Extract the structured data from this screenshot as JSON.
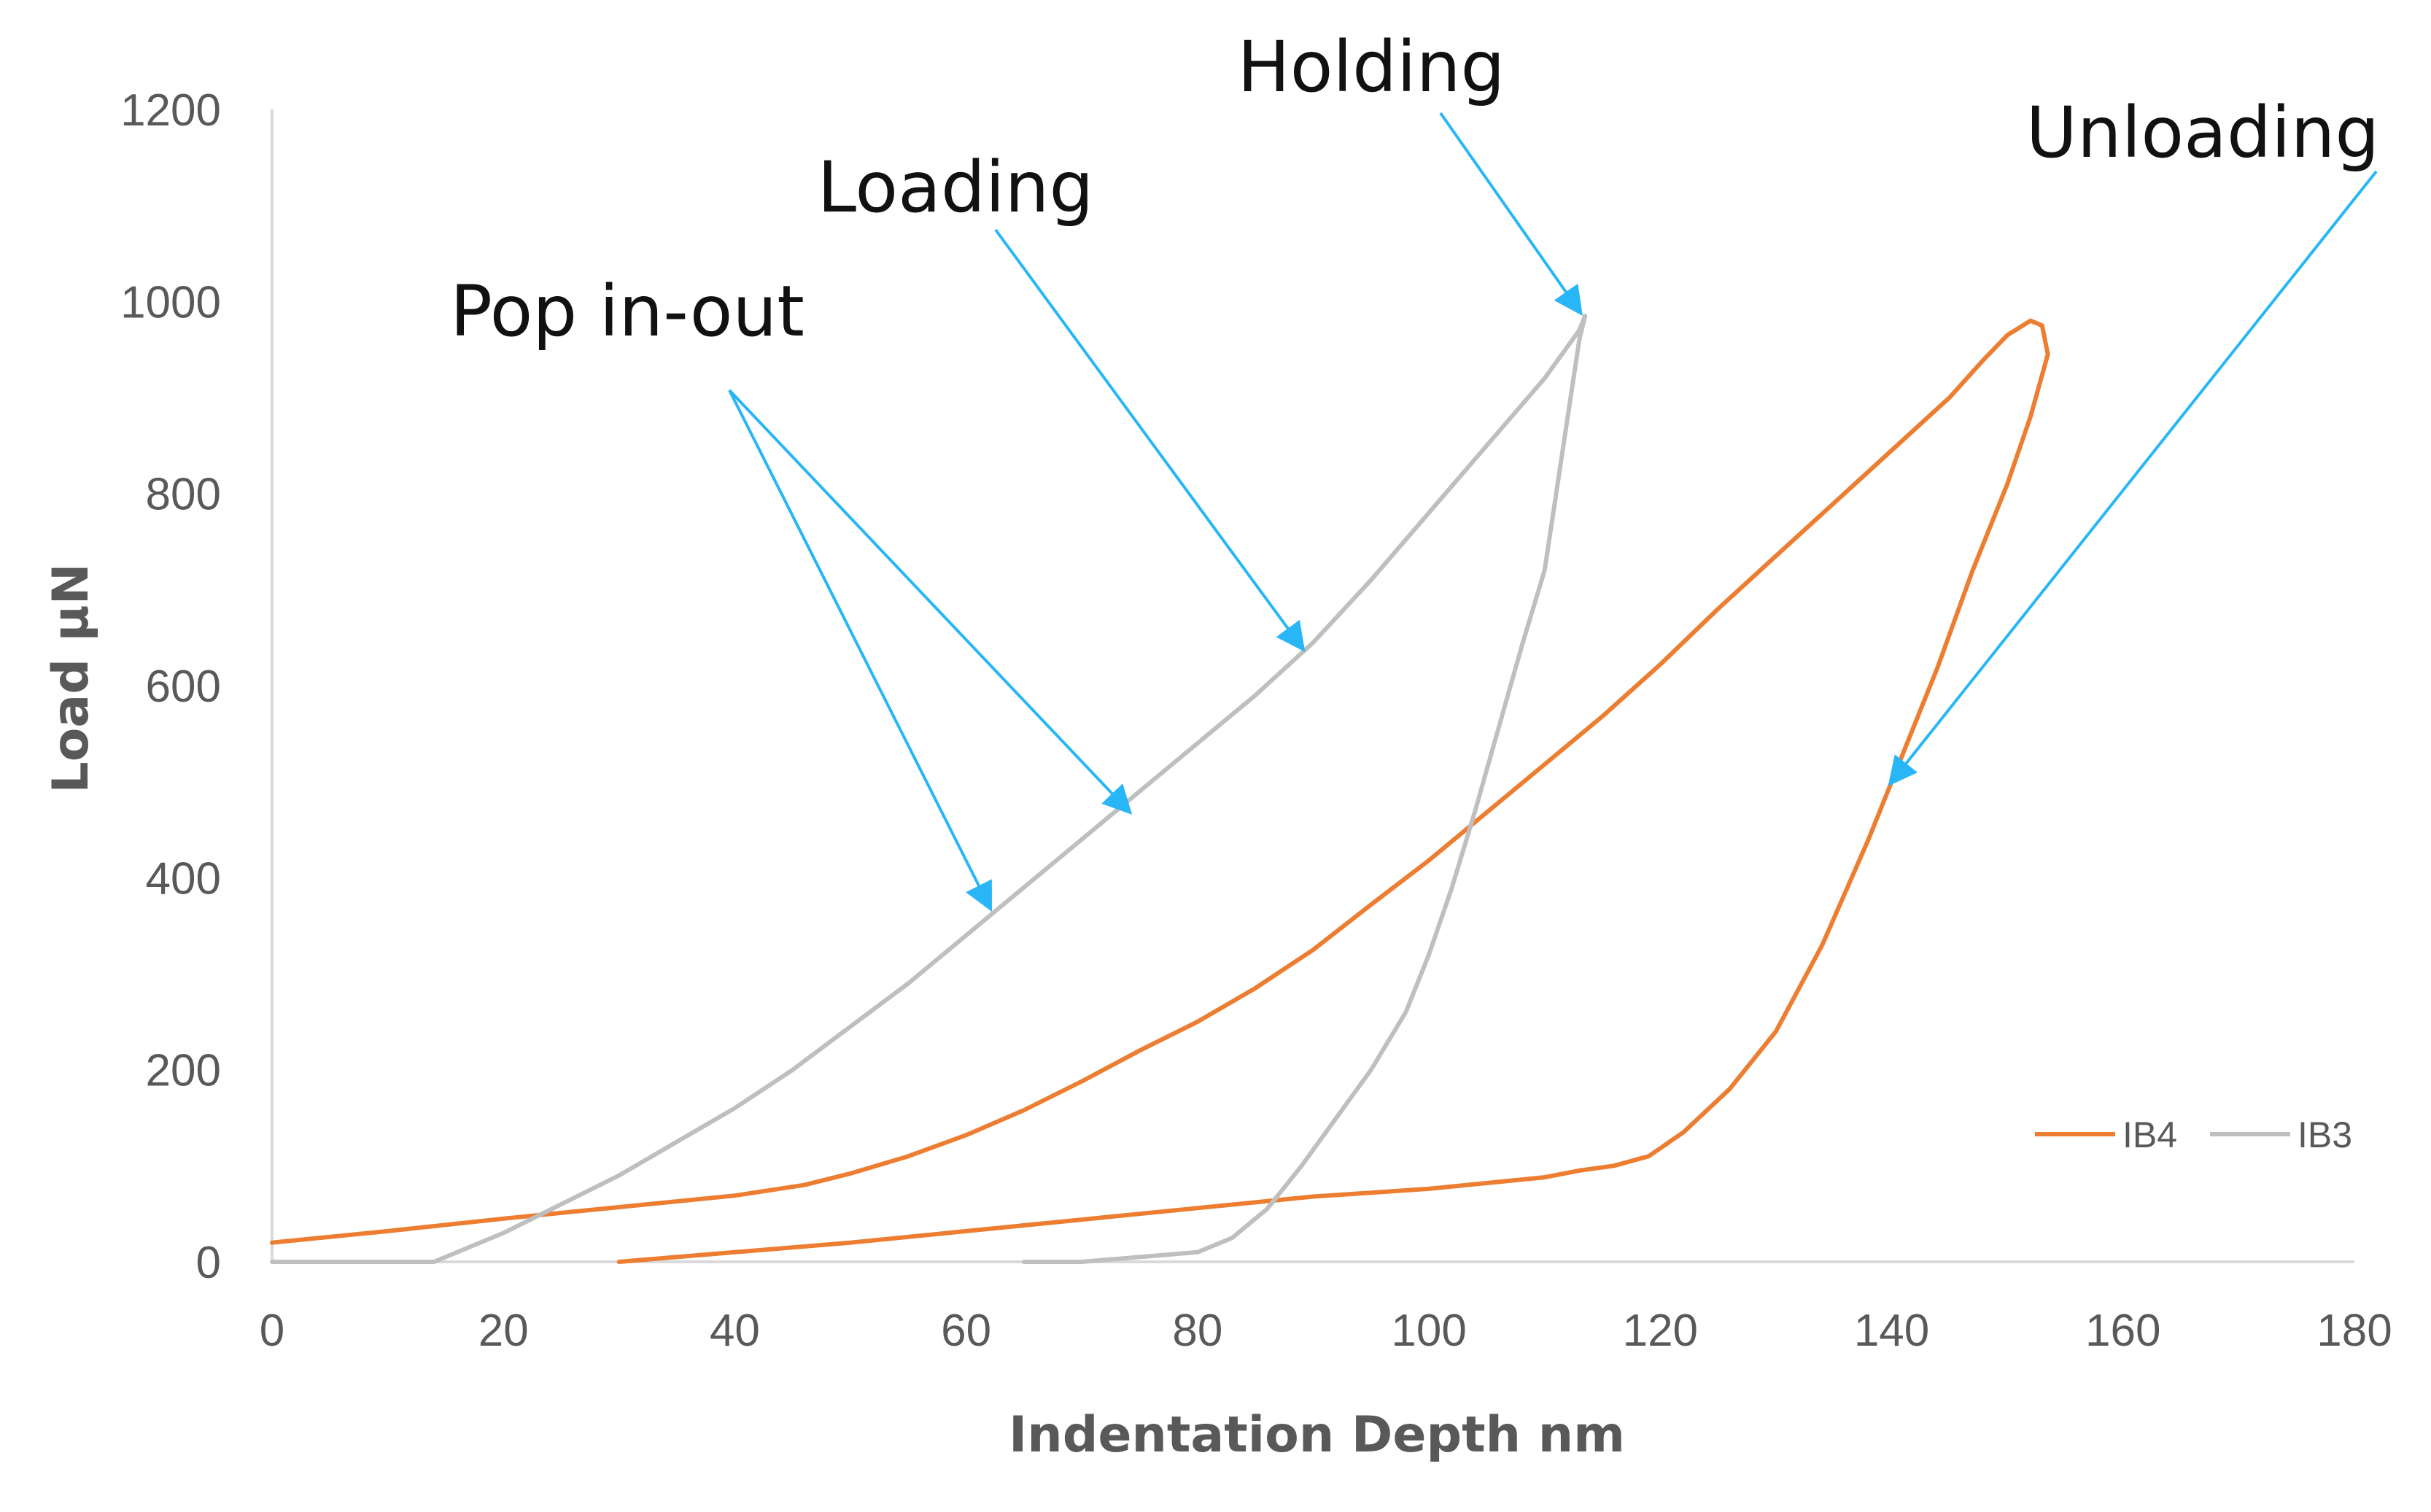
{
  "chart_data": {
    "type": "line",
    "xlabel": "Indentation Depth nm",
    "ylabel": "Load µN",
    "xlim": [
      0,
      180
    ],
    "ylim": [
      0,
      1200
    ],
    "xticks": [
      "0",
      "20",
      "40",
      "60",
      "80",
      "100",
      "120",
      "140",
      "160",
      "180"
    ],
    "yticks": [
      "0",
      "200",
      "400",
      "600",
      "800",
      "1000",
      "1200"
    ],
    "grid": false,
    "legend_position": "bottom-right",
    "series": [
      {
        "name": "IB4",
        "color": "#ED7D31",
        "points": [
          [
            0,
            20
          ],
          [
            10,
            32
          ],
          [
            20,
            45
          ],
          [
            30,
            57
          ],
          [
            40,
            69
          ],
          [
            46,
            80
          ],
          [
            50,
            92
          ],
          [
            55,
            110
          ],
          [
            60,
            132
          ],
          [
            65,
            158
          ],
          [
            70,
            188
          ],
          [
            75,
            220
          ],
          [
            80,
            250
          ],
          [
            85,
            285
          ],
          [
            90,
            325
          ],
          [
            95,
            372
          ],
          [
            100,
            418
          ],
          [
            105,
            468
          ],
          [
            110,
            518
          ],
          [
            115,
            568
          ],
          [
            120,
            622
          ],
          [
            125,
            680
          ],
          [
            130,
            735
          ],
          [
            135,
            790
          ],
          [
            140,
            845
          ],
          [
            145,
            900
          ],
          [
            148,
            940
          ],
          [
            150,
            965
          ],
          [
            152,
            980
          ],
          [
            153,
            975
          ],
          [
            153.5,
            945
          ],
          [
            152,
            880
          ],
          [
            150,
            810
          ],
          [
            147,
            720
          ],
          [
            144,
            620
          ],
          [
            141,
            530
          ],
          [
            138,
            440
          ],
          [
            134,
            330
          ],
          [
            130,
            240
          ],
          [
            126,
            180
          ],
          [
            122,
            135
          ],
          [
            119,
            110
          ],
          [
            116,
            100
          ],
          [
            113,
            95
          ],
          [
            110,
            88
          ],
          [
            105,
            82
          ],
          [
            100,
            76
          ],
          [
            90,
            68
          ],
          [
            80,
            56
          ],
          [
            70,
            44
          ],
          [
            60,
            32
          ],
          [
            50,
            20
          ],
          [
            40,
            10
          ],
          [
            35,
            5
          ],
          [
            30,
            0
          ]
        ]
      },
      {
        "name": "IB3",
        "color": "#BFBFBF",
        "points": [
          [
            0,
            0
          ],
          [
            14,
            0
          ],
          [
            15,
            5
          ],
          [
            20,
            30
          ],
          [
            25,
            60
          ],
          [
            30,
            90
          ],
          [
            35,
            125
          ],
          [
            40,
            160
          ],
          [
            45,
            200
          ],
          [
            50,
            245
          ],
          [
            55,
            290
          ],
          [
            60,
            340
          ],
          [
            65,
            390
          ],
          [
            70,
            440
          ],
          [
            75,
            490
          ],
          [
            80,
            540
          ],
          [
            85,
            590
          ],
          [
            90,
            645
          ],
          [
            95,
            710
          ],
          [
            100,
            780
          ],
          [
            105,
            850
          ],
          [
            110,
            920
          ],
          [
            113,
            970
          ],
          [
            113.5,
            985
          ],
          [
            113,
            960
          ],
          [
            112,
            880
          ],
          [
            111,
            800
          ],
          [
            110,
            720
          ],
          [
            108,
            640
          ],
          [
            106,
            555
          ],
          [
            104,
            470
          ],
          [
            102,
            390
          ],
          [
            100,
            320
          ],
          [
            98,
            260
          ],
          [
            95,
            200
          ],
          [
            92,
            150
          ],
          [
            89,
            100
          ],
          [
            86,
            55
          ],
          [
            83,
            25
          ],
          [
            80,
            10
          ],
          [
            75,
            5
          ],
          [
            70,
            0
          ],
          [
            65,
            0
          ]
        ]
      }
    ],
    "annotations": [
      {
        "text": "Pop in-out",
        "arrow_targets": [
          [
            62,
            370
          ],
          [
            74,
            470
          ]
        ]
      },
      {
        "text": "Loading",
        "arrow_targets": [
          [
            89,
            640
          ]
        ]
      },
      {
        "text": "Holding",
        "arrow_targets": [
          [
            113,
            990
          ]
        ]
      },
      {
        "text": "Unloading",
        "arrow_targets": [
          [
            140,
            500
          ]
        ]
      }
    ]
  },
  "colors": {
    "axis": "#D9D9D9",
    "tick_text": "#595959",
    "arrow": "#29B6F6",
    "annotation_text": "#111111"
  }
}
